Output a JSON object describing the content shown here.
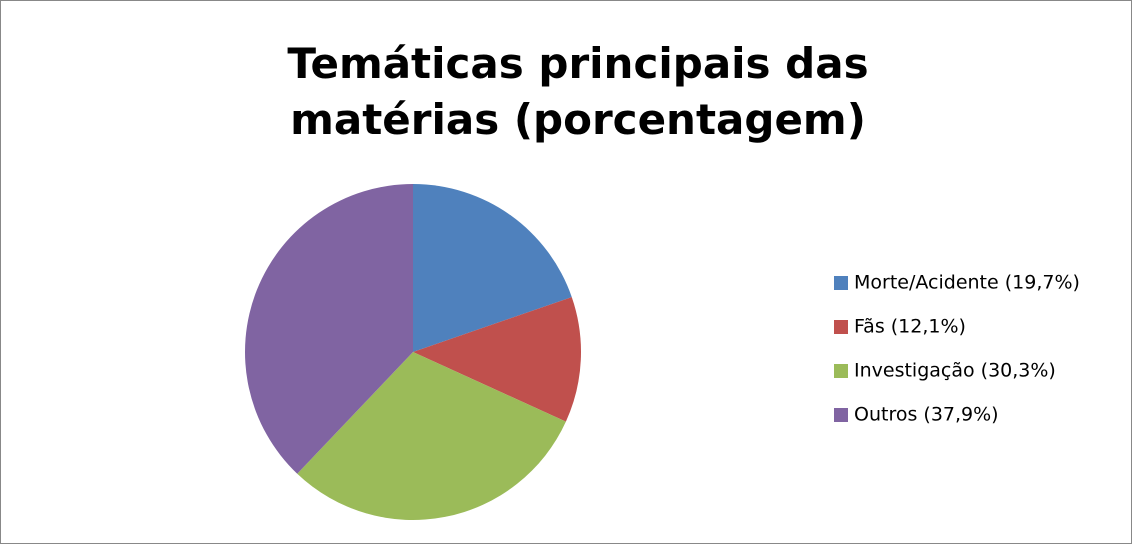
{
  "chart_data": {
    "type": "pie",
    "title": "Temáticas principais das matérias (porcentagem)",
    "categories": [
      "Morte/Acidente (19,7%)",
      "Fãs (12,1%)",
      "Investigação (30,3%)",
      "Outros (37,9%)"
    ],
    "values": [
      19.7,
      12.1,
      30.3,
      37.9
    ],
    "colors": [
      "#4f81bd",
      "#c0504d",
      "#9bbb59",
      "#8064a2"
    ],
    "legend": "right"
  }
}
